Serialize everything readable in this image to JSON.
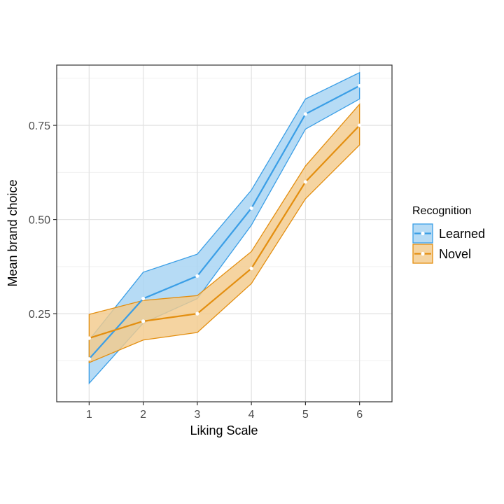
{
  "chart_data": {
    "type": "line",
    "xlabel": "Liking Scale",
    "ylabel": "Mean brand choice",
    "x": [
      1,
      2,
      3,
      4,
      5,
      6
    ],
    "x_ticks": [
      "1",
      "2",
      "3",
      "4",
      "5",
      "6"
    ],
    "y_ticks": [
      0.25,
      0.5,
      0.75
    ],
    "y_tick_labels": [
      "0.25",
      "0.50",
      "0.75"
    ],
    "xlim": [
      0.4,
      6.6
    ],
    "ylim": [
      0.016,
      0.91
    ],
    "grid": true,
    "legend": {
      "title": "Recognition",
      "position": "right"
    },
    "series": [
      {
        "name": "Learned",
        "color": "#3a9ee6",
        "fill": "#a6d3f3",
        "values": [
          0.13,
          0.29,
          0.35,
          0.53,
          0.78,
          0.855
        ],
        "lower": [
          0.065,
          0.225,
          0.29,
          0.485,
          0.74,
          0.82
        ],
        "upper": [
          0.18,
          0.36,
          0.408,
          0.578,
          0.82,
          0.89
        ]
      },
      {
        "name": "Novel",
        "color": "#e38e0f",
        "fill": "#f3cb8c",
        "values": [
          0.185,
          0.23,
          0.25,
          0.37,
          0.6,
          0.75
        ],
        "lower": [
          0.12,
          0.18,
          0.2,
          0.33,
          0.555,
          0.698
        ],
        "upper": [
          0.248,
          0.285,
          0.298,
          0.415,
          0.642,
          0.806
        ]
      }
    ]
  }
}
